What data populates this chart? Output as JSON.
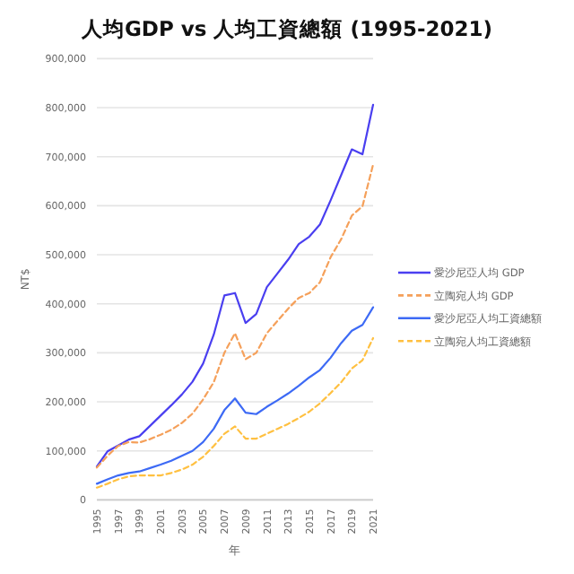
{
  "chart_data": {
    "type": "line",
    "title": "人均GDP vs 人均工資總額 (1995-2021)",
    "xlabel": "年",
    "ylabel": "NT$",
    "categories": [
      "1995",
      null,
      "1997",
      null,
      "1999",
      null,
      "2001",
      null,
      "2003",
      null,
      "2005",
      null,
      "2007",
      null,
      "2009",
      null,
      "2011",
      null,
      "2013",
      null,
      "2015",
      null,
      "2017",
      null,
      "2019",
      null,
      "2021"
    ],
    "series": [
      {
        "name": "愛沙尼亞人均 GDP",
        "color": "#4a3ff0",
        "line_style": "solid",
        "values": [
          68000,
          99000,
          111000,
          123000,
          130000,
          151000,
          172000,
          193000,
          215000,
          241000,
          278000,
          337000,
          417000,
          422000,
          361000,
          379000,
          434000,
          462000,
          490000,
          522000,
          537000,
          562000,
          611000,
          663000,
          715000,
          705000,
          806000
        ]
      },
      {
        "name": "立陶宛人均 GDP",
        "color": "#f5a05a",
        "line_style": "dashed",
        "values": [
          66000,
          90000,
          110000,
          118000,
          117000,
          124000,
          133000,
          143000,
          157000,
          176000,
          205000,
          240000,
          300000,
          340000,
          287000,
          300000,
          340000,
          365000,
          390000,
          412000,
          422000,
          444000,
          495000,
          532000,
          580000,
          599000,
          684000
        ]
      },
      {
        "name": "愛沙尼亞人均工資總額",
        "color": "#3d6af5",
        "line_style": "solid",
        "values": [
          33000,
          42000,
          50000,
          55000,
          58000,
          65000,
          72000,
          80000,
          90000,
          100000,
          118000,
          145000,
          183000,
          207000,
          178000,
          175000,
          190000,
          203000,
          217000,
          233000,
          250000,
          265000,
          290000,
          320000,
          345000,
          357000,
          393000
        ]
      },
      {
        "name": "立陶宛人均工資總額",
        "color": "#ffc040",
        "line_style": "dashed",
        "values": [
          25000,
          33000,
          42000,
          48000,
          50000,
          50000,
          50000,
          55000,
          62000,
          72000,
          88000,
          110000,
          135000,
          150000,
          125000,
          125000,
          135000,
          145000,
          155000,
          167000,
          180000,
          197000,
          218000,
          240000,
          268000,
          285000,
          330000
        ]
      }
    ],
    "ylim": [
      0,
      900000
    ],
    "yticks": [
      {
        "value": 0,
        "label": "0"
      },
      {
        "value": 100000,
        "label": "100,000"
      },
      {
        "value": 200000,
        "label": "200,000"
      },
      {
        "value": 300000,
        "label": "300,000"
      },
      {
        "value": 400000,
        "label": "400,000"
      },
      {
        "value": 500000,
        "label": "500,000"
      },
      {
        "value": 600000,
        "label": "600,000"
      },
      {
        "value": 700000,
        "label": "700,000"
      },
      {
        "value": 800000,
        "label": "800,000"
      },
      {
        "value": 900000,
        "label": "900,000"
      }
    ],
    "grid": "y",
    "legend": "right",
    "marker": "none"
  }
}
